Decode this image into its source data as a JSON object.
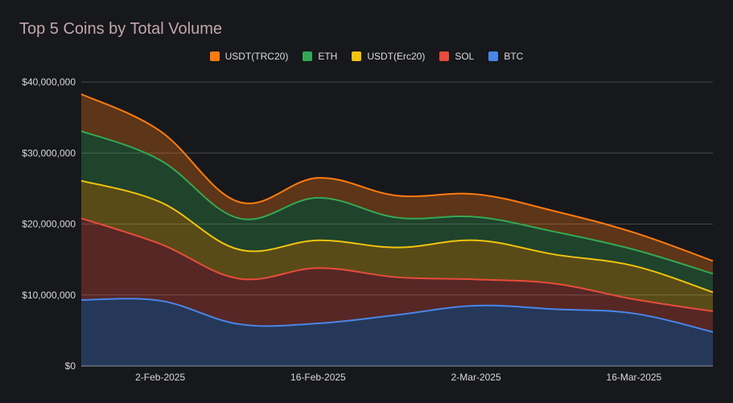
{
  "chart_data": {
    "type": "area",
    "stacked": true,
    "title": "Top 5 Coins by Total Volume",
    "xlabel": "",
    "ylabel": "",
    "ylim": [
      0,
      40000000
    ],
    "yticks": [
      0,
      10000000,
      20000000,
      30000000,
      40000000
    ],
    "ytick_labels": [
      "$0",
      "$10,000,000",
      "$20,000,000",
      "$30,000,000",
      "$40,000,000"
    ],
    "xtick_labels": [
      "2-Feb-2025",
      "16-Feb-2025",
      "2-Mar-2025",
      "16-Mar-2025"
    ],
    "x": [
      "26-Jan-2025",
      "2-Feb-2025",
      "9-Feb-2025",
      "16-Feb-2025",
      "23-Feb-2025",
      "2-Mar-2025",
      "9-Mar-2025",
      "16-Mar-2025",
      "23-Mar-2025"
    ],
    "legend_position": "top-center",
    "grid": true,
    "series": [
      {
        "name": "BTC",
        "color": "#4a86e8",
        "values": [
          9300000,
          9200000,
          5900000,
          6000000,
          7200000,
          8500000,
          8000000,
          7400000,
          4800000
        ]
      },
      {
        "name": "SOL",
        "color": "#e74c3c",
        "values": [
          11500000,
          8000000,
          6400000,
          7800000,
          5300000,
          3700000,
          3600000,
          2000000,
          2900000
        ]
      },
      {
        "name": "USDT(Erc20)",
        "color": "#f1c40f",
        "values": [
          5300000,
          5900000,
          4100000,
          3900000,
          4200000,
          5500000,
          4100000,
          4700000,
          2700000
        ]
      },
      {
        "name": "ETH",
        "color": "#34a853",
        "values": [
          7000000,
          5900000,
          4400000,
          6000000,
          4200000,
          3300000,
          3200000,
          2300000,
          2600000
        ]
      },
      {
        "name": "USDT(TRC20)",
        "color": "#ff7b10",
        "values": [
          5200000,
          4100000,
          2300000,
          2800000,
          3100000,
          3200000,
          2900000,
          2400000,
          1800000
        ]
      }
    ]
  }
}
